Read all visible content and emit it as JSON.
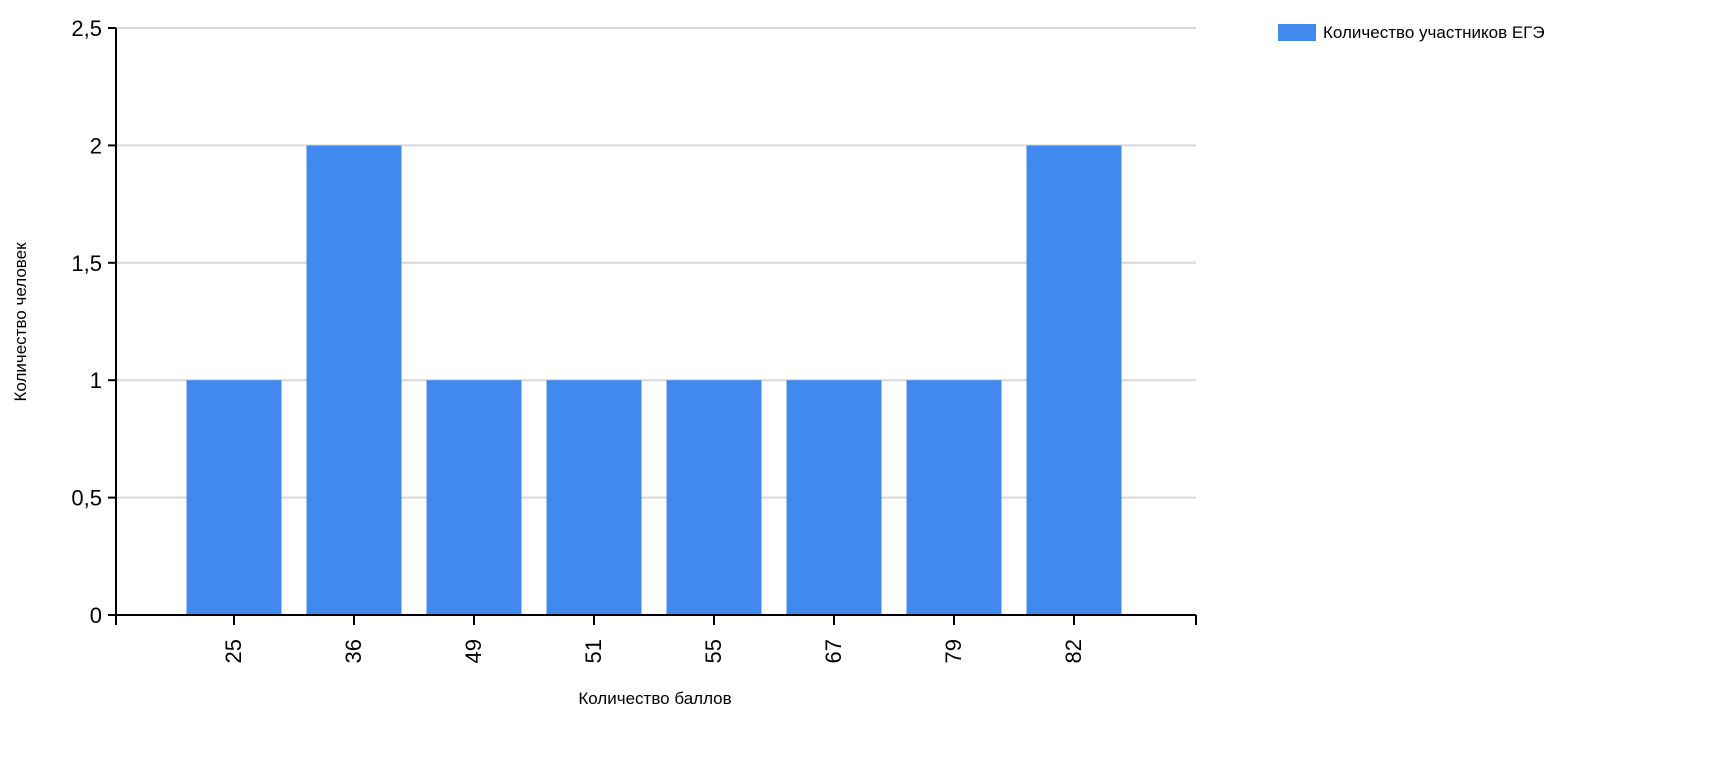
{
  "chart_data": {
    "type": "bar",
    "categories": [
      "25",
      "36",
      "49",
      "51",
      "55",
      "67",
      "79",
      "82"
    ],
    "series": [
      {
        "name": "Количество участников ЕГЭ",
        "values": [
          1,
          2,
          1,
          1,
          1,
          1,
          1,
          2
        ],
        "color": "#4189EE"
      }
    ],
    "xlabel": "Количество баллов",
    "ylabel": "Количество человек",
    "ylim": [
      0,
      2.5
    ],
    "yticks": [
      "0",
      "0,5",
      "1",
      "1,5",
      "2",
      "2,5"
    ],
    "grid": true,
    "legend_position": "top-right"
  }
}
